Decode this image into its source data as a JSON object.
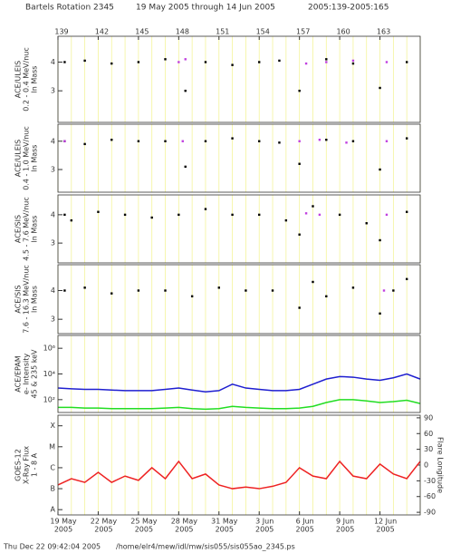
{
  "title": "Bartels Rotation 2345",
  "date_range": "19 May 2005 through 14 Jun 2005",
  "doy_range": "2005:139-2005:165",
  "footer": {
    "timestamp": "Thu Dec 22 09:42:04 2005",
    "path": "/home/elr4/mew/idl/mw/sis055/sis055ao_2345.ps"
  },
  "grid_days": [
    139,
    140,
    141,
    142,
    143,
    144,
    145,
    146,
    147,
    148,
    149,
    150,
    151,
    152,
    153,
    154,
    155,
    156,
    157,
    158,
    159,
    160,
    161,
    162,
    163,
    164,
    165,
    166
  ],
  "chart_data": [
    {
      "type": "scatter",
      "ylabel": [
        "ACE/ULEIS",
        "0.2 - 0.4 MeV/nuc",
        "ln Mass"
      ],
      "xlim": [
        139,
        166
      ],
      "ylim": [
        1.9,
        4.9
      ],
      "yticks": [
        3,
        4
      ],
      "x2ticks": [
        139,
        142,
        145,
        148,
        151,
        154,
        157,
        160,
        163
      ],
      "grid": true,
      "grid_color": "#f4f49a",
      "series": [
        {
          "color": "#000000",
          "x": [
            139.5,
            141,
            143,
            145,
            147,
            148.5,
            150,
            152,
            154,
            155.5,
            157,
            159,
            161,
            163,
            165
          ],
          "y": [
            4.0,
            4.05,
            3.95,
            4.0,
            4.1,
            3.0,
            4.0,
            3.9,
            4.0,
            4.05,
            3.0,
            4.1,
            3.95,
            3.1,
            4.0
          ]
        },
        {
          "color": "#c040e0",
          "x": [
            148,
            148.5,
            157.5,
            159,
            161,
            163.5
          ],
          "y": [
            4.0,
            4.1,
            3.95,
            4.0,
            4.05,
            4.0
          ]
        }
      ]
    },
    {
      "type": "scatter",
      "ylabel": [
        "ACE/ULEIS",
        "0.4 - 1.0 MeV/nuc",
        "ln Mass"
      ],
      "xlim": [
        139,
        166
      ],
      "ylim": [
        2.2,
        4.6
      ],
      "yticks": [
        3,
        4
      ],
      "grid": true,
      "grid_color": "#f4f49a",
      "series": [
        {
          "color": "#000000",
          "x": [
            139.5,
            141,
            143,
            145,
            147,
            148.5,
            150,
            152,
            154,
            155.5,
            157,
            159,
            161,
            163,
            165
          ],
          "y": [
            4.0,
            3.9,
            4.05,
            4.0,
            4.0,
            3.1,
            4.0,
            4.1,
            4.0,
            3.95,
            3.2,
            4.05,
            4.0,
            3.0,
            4.1
          ]
        },
        {
          "color": "#c040e0",
          "x": [
            139.5,
            148.3,
            157,
            158.5,
            160.5,
            163.5
          ],
          "y": [
            4.0,
            4.0,
            4.0,
            4.05,
            3.95,
            4.0
          ]
        }
      ]
    },
    {
      "type": "scatter",
      "ylabel": [
        "ACE/SIS",
        "4.5 - 7.6 MeV/nuc",
        "ln Mass"
      ],
      "xlim": [
        139,
        166
      ],
      "ylim": [
        2.3,
        4.7
      ],
      "yticks": [
        3,
        4
      ],
      "grid": true,
      "grid_color": "#f4f49a",
      "series": [
        {
          "color": "#000000",
          "x": [
            139.5,
            140,
            142,
            144,
            146,
            148,
            150,
            152,
            154,
            156,
            157,
            158,
            160,
            162,
            163,
            165
          ],
          "y": [
            4.0,
            3.8,
            4.1,
            4.0,
            3.9,
            4.0,
            4.2,
            4.0,
            4.0,
            3.8,
            3.3,
            4.3,
            4.0,
            3.7,
            3.1,
            4.1
          ]
        },
        {
          "color": "#c040e0",
          "x": [
            157.5,
            158.5,
            163.5
          ],
          "y": [
            4.05,
            4.0,
            4.0
          ]
        }
      ]
    },
    {
      "type": "scatter",
      "ylabel": [
        "ACE/SIS",
        "7.6 - 16.3 MeV/nuc",
        "ln Mass"
      ],
      "xlim": [
        139,
        166
      ],
      "ylim": [
        2.5,
        4.9
      ],
      "yticks": [
        3,
        4
      ],
      "grid": true,
      "grid_color": "#f4f49a",
      "series": [
        {
          "color": "#000000",
          "x": [
            139.5,
            141,
            143,
            145,
            147,
            149,
            151,
            153,
            155,
            157,
            158,
            159,
            161,
            163,
            164,
            165
          ],
          "y": [
            4.0,
            4.1,
            3.9,
            4.0,
            4.0,
            3.8,
            4.1,
            4.0,
            4.0,
            3.4,
            4.3,
            3.8,
            4.1,
            3.2,
            4.0,
            4.4
          ]
        },
        {
          "color": "#c040e0",
          "x": [
            163.3
          ],
          "y": [
            4.0
          ]
        }
      ]
    },
    {
      "type": "line",
      "ylabel": [
        "ACE/EPAM",
        "e- Intensity",
        "45 & 235 keV"
      ],
      "xlim": [
        139,
        166
      ],
      "ylim": [
        10,
        10000000
      ],
      "log_scale": true,
      "yticks": [
        {
          "value": 100,
          "label": "10²"
        },
        {
          "value": 10000,
          "label": "10⁴"
        },
        {
          "value": 1000000,
          "label": "10⁶"
        }
      ],
      "grid": true,
      "grid_color": "#f4f49a",
      "x": [
        139,
        140,
        141,
        142,
        143,
        144,
        145,
        146,
        147,
        148,
        149,
        150,
        151,
        152,
        153,
        154,
        155,
        156,
        157,
        158,
        159,
        160,
        161,
        162,
        163,
        164,
        165,
        166
      ],
      "series": [
        {
          "color": "#1f1fd0",
          "values": [
            800,
            700,
            630,
            630,
            560,
            500,
            500,
            500,
            630,
            800,
            560,
            400,
            500,
            1600,
            800,
            630,
            500,
            500,
            630,
            1600,
            4000,
            6300,
            5600,
            4000,
            3200,
            5000,
            10000,
            4000
          ]
        },
        {
          "color": "#22dd22",
          "values": [
            25,
            25,
            22,
            22,
            20,
            20,
            20,
            20,
            22,
            25,
            20,
            18,
            20,
            30,
            25,
            22,
            20,
            20,
            22,
            30,
            60,
            100,
            100,
            80,
            60,
            70,
            90,
            50
          ]
        }
      ]
    },
    {
      "type": "line",
      "ylabel": [
        "GOES-12",
        "X-Ray Flux",
        "1 - 8 A"
      ],
      "xlim": [
        139,
        166
      ],
      "ylim": [
        5.6e-09,
        0.00032
      ],
      "log_scale": true,
      "yticks": [
        {
          "value": 1e-08,
          "label": "A"
        },
        {
          "value": 1e-07,
          "label": "B"
        },
        {
          "value": 1e-06,
          "label": "C"
        },
        {
          "value": 1e-05,
          "label": "M"
        },
        {
          "value": 0.0001,
          "label": "X"
        }
      ],
      "y2label": "Flare Longitude",
      "y2lim": [
        -95,
        95
      ],
      "y2ticks": [
        90,
        60,
        30,
        0,
        -30,
        -60,
        -90
      ],
      "grid": true,
      "grid_color": "#f4f49a",
      "xticks": [
        {
          "value": 139,
          "label": "19 May"
        },
        {
          "value": 142,
          "label": "22 May"
        },
        {
          "value": 145,
          "label": "25 May"
        },
        {
          "value": 148,
          "label": "28 May"
        },
        {
          "value": 151,
          "label": "31 May"
        },
        {
          "value": 154,
          "label": "3 Jun"
        },
        {
          "value": 157,
          "label": "6 Jun"
        },
        {
          "value": 160,
          "label": "9 Jun"
        },
        {
          "value": 163,
          "label": "12 Jun"
        }
      ],
      "xtick_sublabels": [
        "2005",
        "2005",
        "2005",
        "2005",
        "2005",
        "2005",
        "2005",
        "2005",
        "2005"
      ],
      "x": [
        139,
        140,
        141,
        142,
        143,
        144,
        145,
        146,
        147,
        148,
        149,
        150,
        151,
        152,
        153,
        154,
        155,
        156,
        157,
        158,
        159,
        160,
        161,
        162,
        163,
        164,
        165,
        166
      ],
      "series": [
        {
          "color": "#ee2222",
          "values": [
            1.5e-07,
            3e-07,
            2e-07,
            6e-07,
            2e-07,
            4e-07,
            2.5e-07,
            1e-06,
            3e-07,
            2e-06,
            3e-07,
            5e-07,
            1.5e-07,
            1e-07,
            1.2e-07,
            1e-07,
            1.3e-07,
            2e-07,
            1e-06,
            4e-07,
            3e-07,
            2e-06,
            4e-07,
            3e-07,
            1.5e-06,
            5e-07,
            3e-07,
            2e-06
          ]
        }
      ]
    }
  ]
}
